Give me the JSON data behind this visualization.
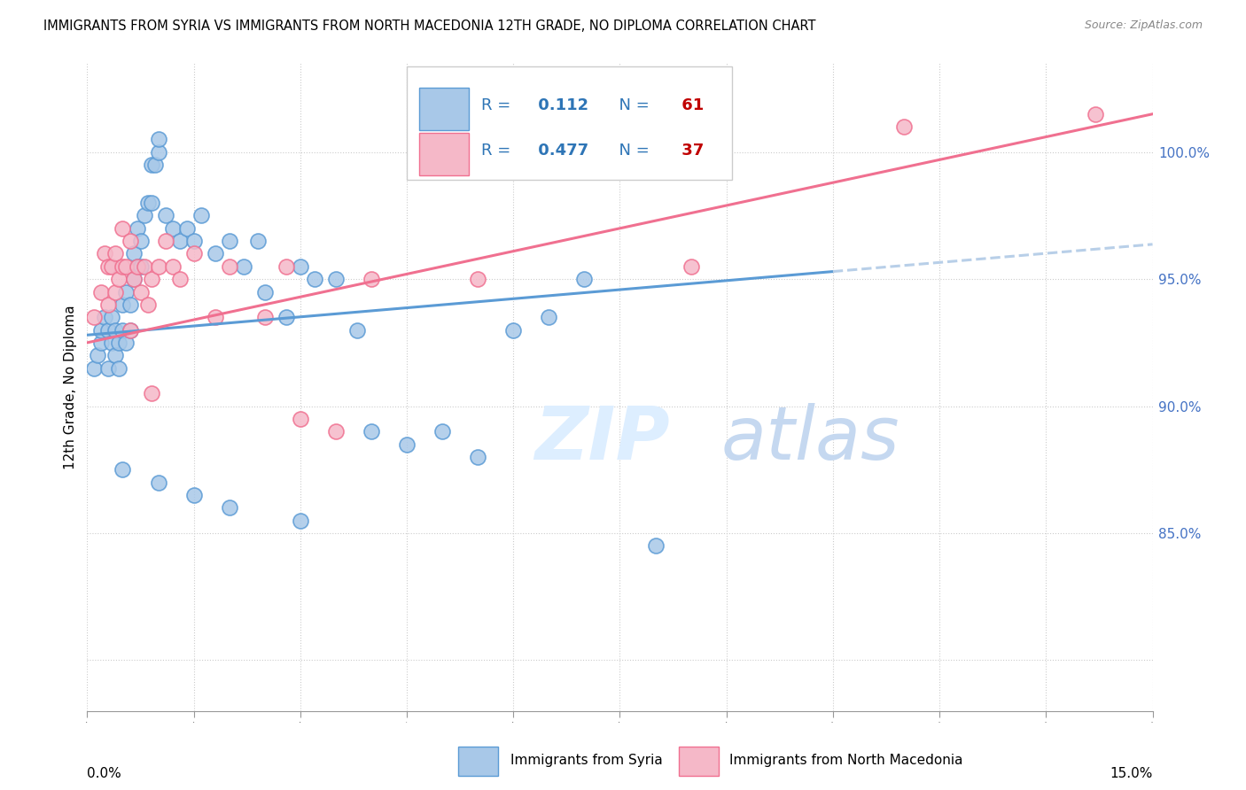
{
  "title": "IMMIGRANTS FROM SYRIA VS IMMIGRANTS FROM NORTH MACEDONIA 12TH GRADE, NO DIPLOMA CORRELATION CHART",
  "source": "Source: ZipAtlas.com",
  "ylabel": "12th Grade, No Diploma",
  "x_min": 0.0,
  "x_max": 15.0,
  "y_min": 78.0,
  "y_max": 103.5,
  "syria_R": 0.112,
  "syria_N": 61,
  "macedonia_R": 0.477,
  "macedonia_N": 37,
  "syria_color": "#a8c8e8",
  "macedonia_color": "#f5b8c8",
  "syria_edge_color": "#5b9bd5",
  "macedonia_edge_color": "#f07090",
  "syria_line_color": "#5b9bd5",
  "macedonia_line_color": "#f07090",
  "dashed_line_color": "#b8cfe8",
  "legend_R_color": "#2e75b6",
  "legend_N_color": "#c00000",
  "syria_scatter_x": [
    0.1,
    0.15,
    0.2,
    0.2,
    0.25,
    0.3,
    0.3,
    0.35,
    0.35,
    0.4,
    0.4,
    0.45,
    0.45,
    0.5,
    0.5,
    0.55,
    0.55,
    0.6,
    0.6,
    0.65,
    0.65,
    0.7,
    0.7,
    0.75,
    0.75,
    0.8,
    0.85,
    0.9,
    0.9,
    0.95,
    1.0,
    1.0,
    1.1,
    1.2,
    1.3,
    1.4,
    1.5,
    1.6,
    1.8,
    2.0,
    2.2,
    2.4,
    2.5,
    2.8,
    3.0,
    3.2,
    3.5,
    3.8,
    4.0,
    4.5,
    5.0,
    5.5,
    6.0,
    6.5,
    7.0,
    0.5,
    1.0,
    1.5,
    2.0,
    3.0,
    8.0
  ],
  "syria_scatter_y": [
    91.5,
    92.0,
    92.5,
    93.0,
    93.5,
    91.5,
    93.0,
    92.5,
    93.5,
    93.0,
    92.0,
    91.5,
    92.5,
    93.0,
    94.0,
    92.5,
    94.5,
    93.0,
    94.0,
    95.0,
    96.0,
    95.5,
    97.0,
    96.5,
    95.5,
    97.5,
    98.0,
    98.0,
    99.5,
    99.5,
    100.0,
    100.5,
    97.5,
    97.0,
    96.5,
    97.0,
    96.5,
    97.5,
    96.0,
    96.5,
    95.5,
    96.5,
    94.5,
    93.5,
    95.5,
    95.0,
    95.0,
    93.0,
    89.0,
    88.5,
    89.0,
    88.0,
    93.0,
    93.5,
    95.0,
    87.5,
    87.0,
    86.5,
    86.0,
    85.5,
    84.5
  ],
  "macedonia_scatter_x": [
    0.1,
    0.2,
    0.25,
    0.3,
    0.3,
    0.35,
    0.4,
    0.4,
    0.45,
    0.5,
    0.5,
    0.55,
    0.6,
    0.65,
    0.7,
    0.75,
    0.8,
    0.85,
    0.9,
    1.0,
    1.1,
    1.2,
    1.3,
    1.5,
    1.8,
    2.0,
    2.5,
    2.8,
    3.0,
    3.5,
    4.0,
    5.5,
    8.5,
    11.5,
    14.2,
    0.6,
    0.9
  ],
  "macedonia_scatter_y": [
    93.5,
    94.5,
    96.0,
    95.5,
    94.0,
    95.5,
    96.0,
    94.5,
    95.0,
    97.0,
    95.5,
    95.5,
    96.5,
    95.0,
    95.5,
    94.5,
    95.5,
    94.0,
    95.0,
    95.5,
    96.5,
    95.5,
    95.0,
    96.0,
    93.5,
    95.5,
    93.5,
    95.5,
    89.5,
    89.0,
    95.0,
    95.0,
    95.5,
    101.0,
    101.5,
    93.0,
    90.5
  ],
  "syria_trend_x0": 0.0,
  "syria_trend_y0": 92.8,
  "syria_trend_x1": 10.5,
  "syria_trend_y1": 95.3,
  "syria_solid_end": 10.5,
  "syria_dash_start": 10.5,
  "syria_dash_end": 15.0,
  "macedonia_trend_x0": 0.0,
  "macedonia_trend_y0": 92.5,
  "macedonia_trend_x1": 15.0,
  "macedonia_trend_y1": 101.5
}
